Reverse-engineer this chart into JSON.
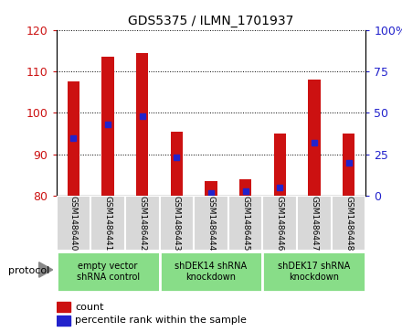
{
  "title": "GDS5375 / ILMN_1701937",
  "samples": [
    "GSM1486440",
    "GSM1486441",
    "GSM1486442",
    "GSM1486443",
    "GSM1486444",
    "GSM1486445",
    "GSM1486446",
    "GSM1486447",
    "GSM1486448"
  ],
  "count_values": [
    107.5,
    113.5,
    114.5,
    95.5,
    83.5,
    84.0,
    95.0,
    108.0,
    95.0
  ],
  "percentile_values": [
    35,
    43,
    48,
    23,
    2,
    3,
    5,
    32,
    20
  ],
  "ylim_left": [
    80,
    120
  ],
  "ylim_right": [
    0,
    100
  ],
  "yticks_left": [
    80,
    90,
    100,
    110,
    120
  ],
  "yticks_right": [
    0,
    25,
    50,
    75,
    100
  ],
  "bar_color": "#cc1111",
  "dot_color": "#2222cc",
  "baseline": 80,
  "groups": [
    {
      "label": "empty vector\nshRNA control",
      "start": 0,
      "end": 3
    },
    {
      "label": "shDEK14 shRNA\nknockdown",
      "start": 3,
      "end": 6
    },
    {
      "label": "shDEK17 shRNA\nknockdown",
      "start": 6,
      "end": 9
    }
  ],
  "legend_count_label": "count",
  "legend_pct_label": "percentile rank within the sample",
  "protocol_label": "protocol",
  "bar_width": 0.35
}
